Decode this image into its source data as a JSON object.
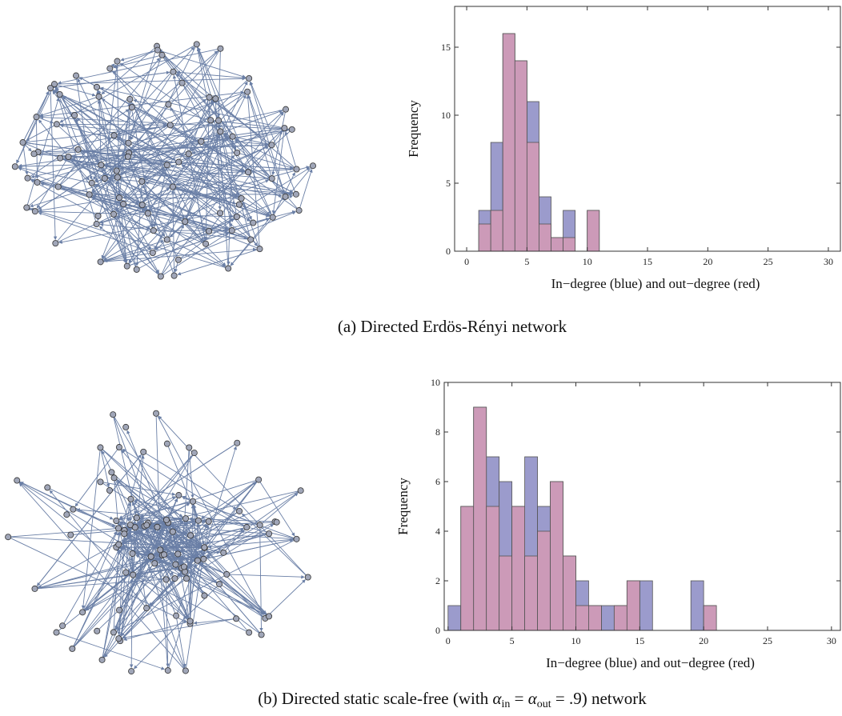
{
  "captions": {
    "a": "(a) Directed Erdös-Rényi network",
    "b_prefix": "(b) Directed static scale-free (with ",
    "b_alpha": "α",
    "b_in": "in",
    "b_eq1": " = ",
    "b_out": "out",
    "b_eq2": " = .9) network"
  },
  "colors": {
    "blue": "#9b9bcc",
    "red": "#cc9ab8",
    "edge": "#6a7fa6",
    "node": "#a0a6b8"
  },
  "chart_data": [
    {
      "type": "bar",
      "id": "er-histogram",
      "xlabel": "In−degree (blue) and out−degree (red)",
      "ylabel": "Frequency",
      "xlim": [
        -1,
        31
      ],
      "ylim": [
        0,
        18
      ],
      "xticks": [
        0,
        5,
        10,
        15,
        20,
        25,
        30
      ],
      "yticks": [
        0,
        5,
        10,
        15
      ],
      "bin_edges": [
        1,
        2,
        3,
        4,
        5,
        6,
        7,
        8,
        9,
        10,
        11
      ],
      "series": [
        {
          "color": "#9b9bcc",
          "values": [
            3,
            8,
            16,
            14,
            11,
            4,
            1,
            3,
            0,
            3
          ]
        },
        {
          "color": "#cc9ab8",
          "values": [
            2,
            3,
            16,
            14,
            8,
            2,
            1,
            1,
            0,
            3
          ]
        }
      ]
    },
    {
      "type": "bar",
      "id": "sf-histogram",
      "xlabel": "In−degree (blue) and out−degree (red)",
      "ylabel": "Frequency",
      "xlim": [
        -0.3,
        30.7
      ],
      "ylim": [
        0,
        10
      ],
      "xticks": [
        0,
        5,
        10,
        15,
        20,
        25,
        30
      ],
      "yticks": [
        0,
        2,
        4,
        6,
        8,
        10
      ],
      "bin_edges": [
        0,
        1,
        2,
        3,
        4,
        5,
        6,
        7,
        8,
        9,
        10,
        11,
        12,
        13,
        14,
        15,
        16,
        17,
        18,
        19,
        20,
        21
      ],
      "series": [
        {
          "color": "#9b9bcc",
          "values": [
            1,
            5,
            9,
            7,
            6,
            5,
            7,
            5,
            6,
            3,
            2,
            1,
            1,
            1,
            2,
            2,
            0,
            0,
            0,
            2,
            1
          ]
        },
        {
          "color": "#cc9ab8",
          "values": [
            0,
            5,
            9,
            5,
            3,
            5,
            3,
            4,
            6,
            3,
            1,
            1,
            0,
            1,
            2,
            0,
            0,
            0,
            0,
            0,
            1
          ]
        }
      ]
    }
  ]
}
